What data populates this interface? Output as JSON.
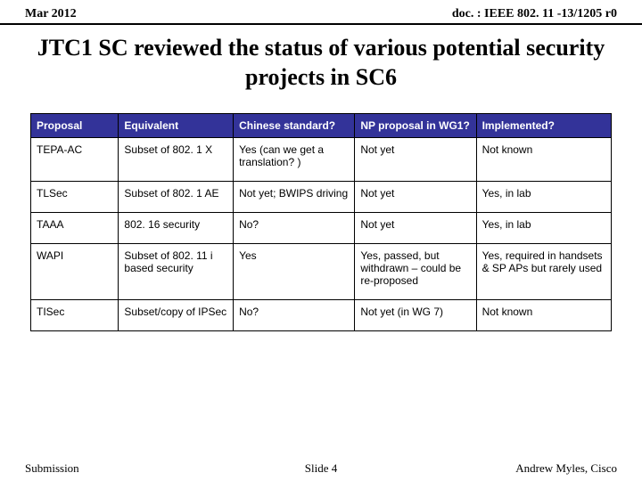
{
  "header": {
    "left": "Mar 2012",
    "right": "doc. : IEEE 802. 11 -13/1205 r0"
  },
  "title": "JTC1 SC reviewed the status of various potential security projects in SC6",
  "table": {
    "columns": [
      "Proposal",
      "Equivalent",
      "Chinese standard?",
      "NP proposal in WG1?",
      "Implemented?"
    ],
    "rows": [
      [
        "TEPA-AC",
        "Subset of 802. 1 X",
        "Yes (can we get a translation? )",
        "Not yet",
        "Not known"
      ],
      [
        "TLSec",
        "Subset of 802. 1 AE",
        "Not yet; BWIPS driving",
        "Not yet",
        "Yes, in lab"
      ],
      [
        "TAAA",
        "802. 16 security",
        "No?",
        "Not yet",
        "Yes, in lab"
      ],
      [
        "WAPI",
        "Subset of 802. 11 i based security",
        "Yes",
        "Yes, passed, but withdrawn – could be re-proposed",
        "Yes, required in handsets & SP APs but rarely used"
      ],
      [
        "TISec",
        "Subset/copy of IPSec",
        "No?",
        "Not yet (in WG 7)",
        "Not known"
      ]
    ],
    "header_bg": "#333399",
    "header_color": "#ffffff",
    "border_color": "#000000",
    "font_size_body": 12,
    "font_size_header": 12
  },
  "footer": {
    "left": "Submission",
    "center": "Slide 4",
    "right": "Andrew Myles, Cisco"
  }
}
